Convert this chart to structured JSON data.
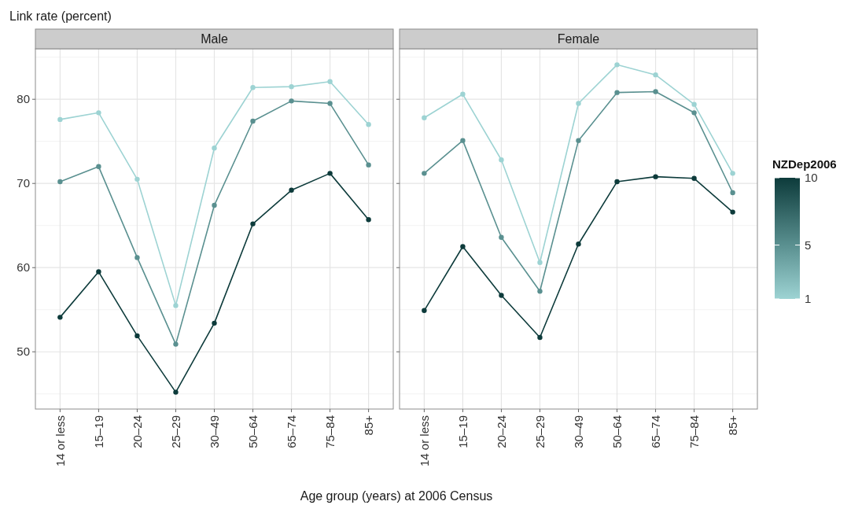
{
  "chart_data": [
    {
      "type": "line",
      "title": "Male",
      "ylabel": "Link rate (percent)",
      "xlabel": "Age group (years) at 2006 Census",
      "categories": [
        "14 or less",
        "15–19",
        "20–24",
        "25–29",
        "30–49",
        "50–64",
        "65–74",
        "75–84",
        "85+"
      ],
      "ylim": [
        43.2,
        86
      ],
      "yticks": [
        50,
        60,
        70,
        80
      ],
      "grid": true,
      "marker": "circle",
      "series": [
        {
          "color": "#9dd3d3",
          "values": [
            77.6,
            78.4,
            70.5,
            55.5,
            74.2,
            81.4,
            81.5,
            82.1,
            77.0
          ]
        },
        {
          "color": "#5a9090",
          "values": [
            70.2,
            72.0,
            61.2,
            50.9,
            67.4,
            77.4,
            79.8,
            79.5,
            72.2
          ]
        },
        {
          "color": "#0d3b3b",
          "values": [
            54.1,
            59.5,
            51.9,
            45.2,
            53.4,
            65.2,
            69.2,
            71.2,
            65.7
          ]
        }
      ]
    },
    {
      "type": "line",
      "title": "Female",
      "categories": [
        "14 or less",
        "15–19",
        "20–24",
        "25–29",
        "30–49",
        "50–64",
        "65–74",
        "75–84",
        "85+"
      ],
      "ylim": [
        43.2,
        86
      ],
      "yticks": [
        50,
        60,
        70,
        80
      ],
      "tick_labels": "x",
      "grid": true,
      "marker": "circle",
      "clabel": "NZDep2006",
      "clim": [
        1,
        10
      ],
      "cticks": [
        1,
        5,
        10
      ],
      "series": [
        {
          "color": "#9dd3d3",
          "values": [
            77.8,
            80.6,
            72.8,
            60.6,
            79.5,
            84.1,
            82.9,
            79.4,
            71.2
          ]
        },
        {
          "color": "#5a9090",
          "values": [
            71.2,
            75.1,
            63.6,
            57.2,
            75.1,
            80.8,
            80.9,
            78.4,
            68.9
          ]
        },
        {
          "color": "#0d3b3b",
          "values": [
            54.9,
            62.5,
            56.7,
            51.7,
            62.8,
            70.2,
            70.8,
            70.6,
            66.6
          ]
        }
      ]
    }
  ]
}
